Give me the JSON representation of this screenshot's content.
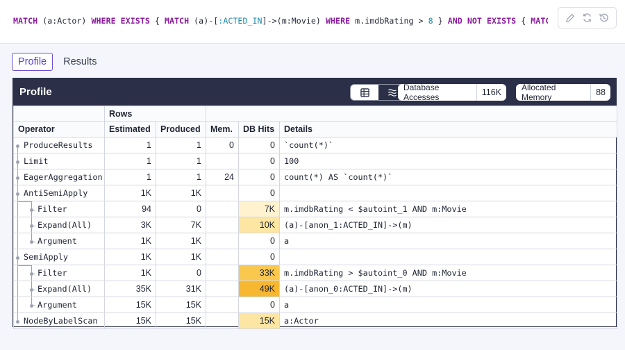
{
  "query": {
    "segments": [
      {
        "t": "MATCH",
        "c": "kw"
      },
      {
        "t": " (a:Actor) ",
        "c": ""
      },
      {
        "t": "WHERE EXISTS",
        "c": "kw"
      },
      {
        "t": " { ",
        "c": ""
      },
      {
        "t": "MATCH",
        "c": "kw"
      },
      {
        "t": " (a)-[",
        "c": ""
      },
      {
        "t": ":ACTED_IN",
        "c": "rel"
      },
      {
        "t": "]->(m:Movie) ",
        "c": ""
      },
      {
        "t": "WHERE",
        "c": "kw"
      },
      {
        "t": " m.imdbRating > ",
        "c": ""
      },
      {
        "t": "8",
        "c": "num"
      },
      {
        "t": " } ",
        "c": ""
      },
      {
        "t": "AND NOT EXISTS",
        "c": "kw"
      },
      {
        "t": " { ",
        "c": ""
      },
      {
        "t": "MATCH",
        "c": "kw"
      },
      {
        "t": " …",
        "c": ""
      }
    ],
    "actions": [
      {
        "name": "edit-icon"
      },
      {
        "name": "rerun-icon"
      },
      {
        "name": "history-icon"
      }
    ]
  },
  "tabs": [
    {
      "label": "Profile",
      "active": true
    },
    {
      "label": "Results",
      "active": false
    }
  ],
  "panel": {
    "title": "Profile",
    "view_toggle": [
      {
        "name": "table-view-icon",
        "active": true
      },
      {
        "name": "plan-view-icon",
        "active": false
      }
    ],
    "db_accesses": {
      "label": "Database Accesses",
      "value": "116K"
    },
    "allocated_memory": {
      "label": "Allocated Memory",
      "value": "88"
    }
  },
  "table": {
    "group_header": "Rows",
    "columns": [
      "Operator",
      "Estimated",
      "Produced",
      "Mem.",
      "DB Hits",
      "Details"
    ],
    "rows": [
      {
        "operator": "ProduceResults",
        "depth": 0,
        "estimated": "1",
        "produced": "1",
        "mem": "0",
        "dbhits": "0",
        "dbhits_raw": 0,
        "details": "`count(*)`"
      },
      {
        "operator": "Limit",
        "depth": 0,
        "estimated": "1",
        "produced": "1",
        "mem": "",
        "dbhits": "0",
        "dbhits_raw": 0,
        "details": "100"
      },
      {
        "operator": "EagerAggregation",
        "depth": 0,
        "estimated": "1",
        "produced": "1",
        "mem": "24",
        "dbhits": "0",
        "dbhits_raw": 0,
        "details": "count(*) AS `count(*)`"
      },
      {
        "operator": "AntiSemiApply",
        "depth": 0,
        "estimated": "1K",
        "produced": "1K",
        "mem": "",
        "dbhits": "0",
        "dbhits_raw": 0,
        "details": ""
      },
      {
        "operator": "Filter",
        "depth": 1,
        "estimated": "94",
        "produced": "0",
        "mem": "",
        "dbhits": "7K",
        "dbhits_raw": 7,
        "details": "m.imdbRating < $autoint_1 AND m:Movie"
      },
      {
        "operator": "Expand(All)",
        "depth": 1,
        "estimated": "3K",
        "produced": "7K",
        "mem": "",
        "dbhits": "10K",
        "dbhits_raw": 10,
        "details": "(a)-[anon_1:ACTED_IN]->(m)"
      },
      {
        "operator": "Argument",
        "depth": 1,
        "estimated": "1K",
        "produced": "1K",
        "mem": "",
        "dbhits": "0",
        "dbhits_raw": 0,
        "details": "a"
      },
      {
        "operator": "SemiApply",
        "depth": 0,
        "estimated": "1K",
        "produced": "1K",
        "mem": "",
        "dbhits": "0",
        "dbhits_raw": 0,
        "details": ""
      },
      {
        "operator": "Filter",
        "depth": 1,
        "estimated": "1K",
        "produced": "0",
        "mem": "",
        "dbhits": "33K",
        "dbhits_raw": 33,
        "details": "m.imdbRating > $autoint_0 AND m:Movie"
      },
      {
        "operator": "Expand(All)",
        "depth": 1,
        "estimated": "35K",
        "produced": "31K",
        "mem": "",
        "dbhits": "49K",
        "dbhits_raw": 49,
        "details": "(a)-[anon_0:ACTED_IN]->(m)"
      },
      {
        "operator": "Argument",
        "depth": 1,
        "estimated": "15K",
        "produced": "15K",
        "mem": "",
        "dbhits": "0",
        "dbhits_raw": 0,
        "details": "a"
      },
      {
        "operator": "NodeByLabelScan",
        "depth": 0,
        "estimated": "15K",
        "produced": "15K",
        "mem": "",
        "dbhits": "15K",
        "dbhits_raw": 15,
        "details": "a:Actor"
      }
    ]
  },
  "colors": {
    "header_bg": "#2b3048",
    "tab_accent": "#6a4fd8",
    "keyword": "#8b1a9e",
    "hit_low": "#fff3cf",
    "hit_mid": "#fde6a3",
    "hit_high": "#fbc84f",
    "hit_max": "#f7b731"
  }
}
